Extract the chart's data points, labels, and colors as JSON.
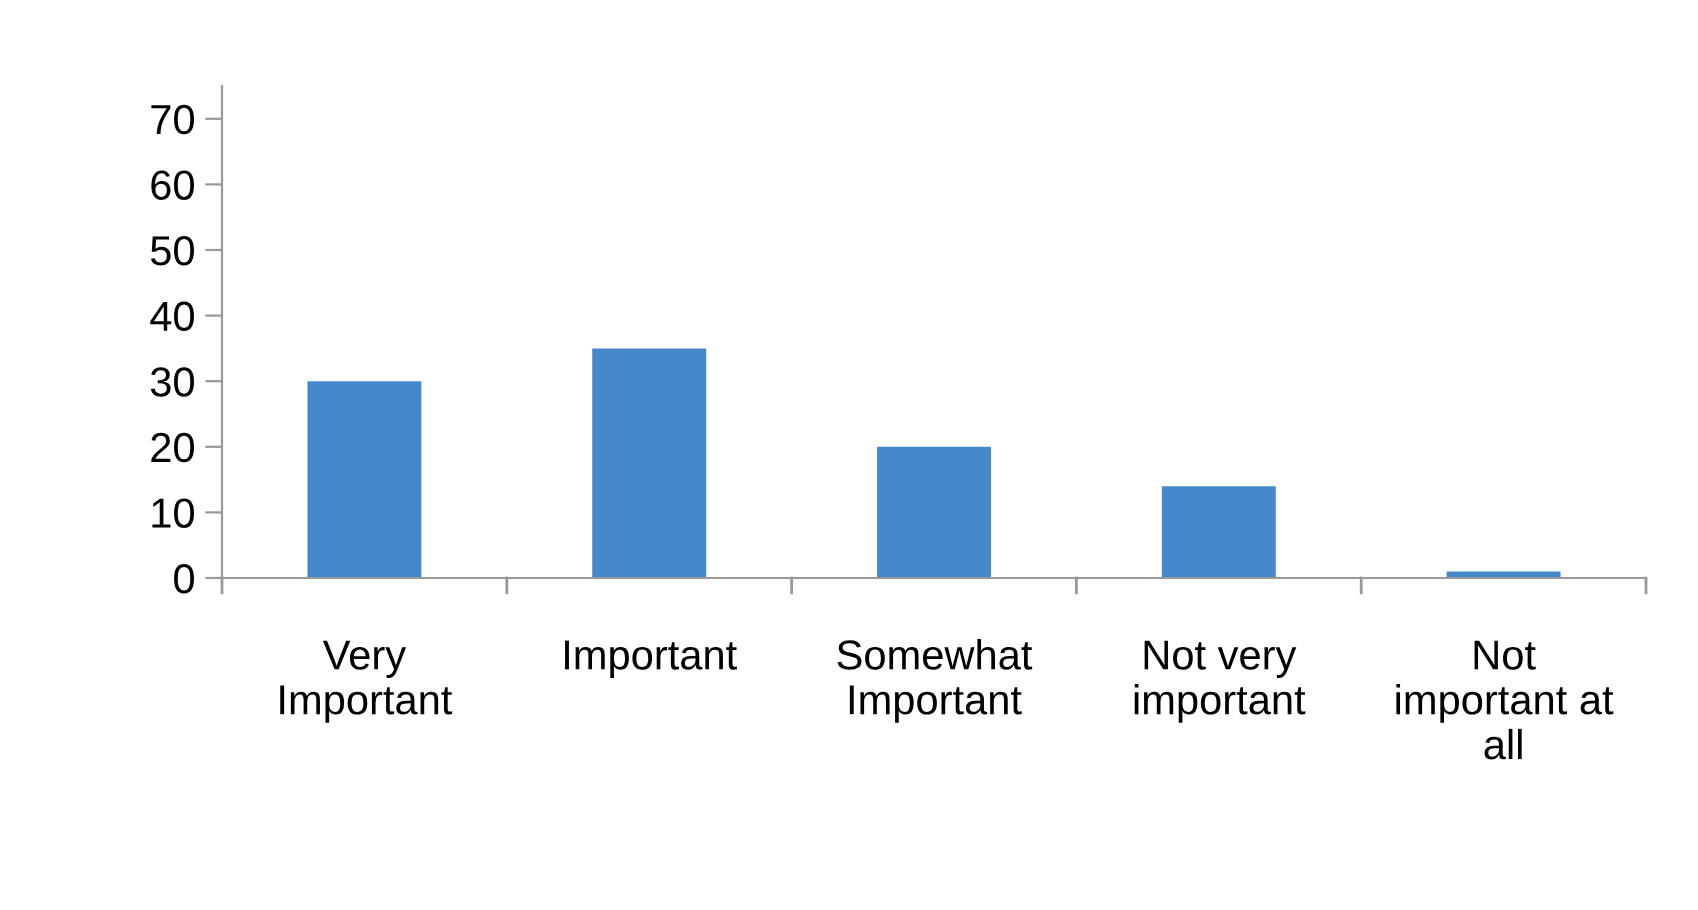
{
  "chart_data": {
    "type": "bar",
    "categories": [
      "Very\nImportant",
      "Important",
      "Somewhat\nImportant",
      "Not very\nimportant",
      "Not\nimportant at\nall"
    ],
    "values": [
      30,
      35,
      20,
      14,
      1
    ],
    "color": "#4588cc",
    "ylim": [
      0,
      75
    ],
    "yticks": [
      0,
      10,
      20,
      30,
      40,
      50,
      60,
      70
    ],
    "grid": false,
    "legend": false
  }
}
